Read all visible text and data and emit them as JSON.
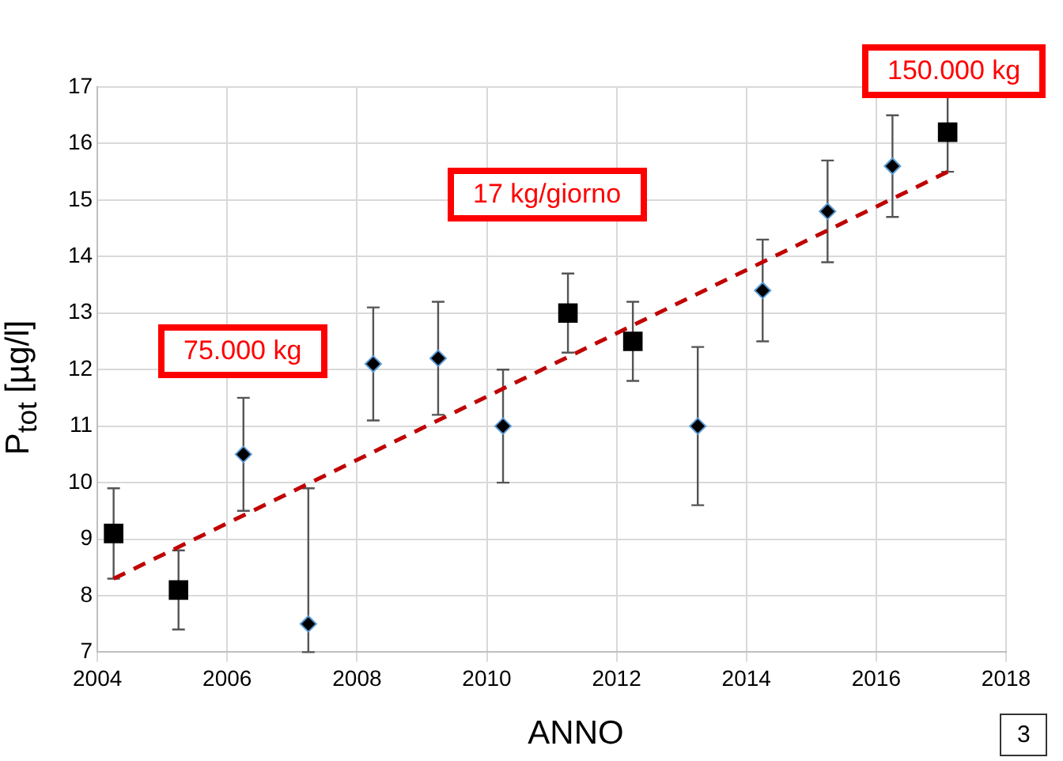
{
  "chart_data": {
    "type": "scatter",
    "xlabel": "ANNO",
    "ylabel": "P$_{tot}$ [µg/l]",
    "xlim": [
      2004,
      2018
    ],
    "xticks": [
      2004,
      2006,
      2008,
      2010,
      2012,
      2014,
      2016,
      2018
    ],
    "ylim": [
      7,
      17
    ],
    "yticks": [
      7,
      8,
      9,
      10,
      11,
      12,
      13,
      14,
      15,
      16,
      17
    ],
    "grid": true,
    "legend": false,
    "series": [
      {
        "type": "scatter",
        "marker": "square",
        "color": "#000000",
        "x": [
          2004.25,
          2005.25,
          2011.25,
          2012.25,
          2017.1
        ],
        "values": [
          9.1,
          8.1,
          13.0,
          12.5,
          16.2
        ],
        "errors": [
          [
            8.3,
            9.9
          ],
          [
            7.4,
            8.8
          ],
          [
            12.3,
            13.7
          ],
          [
            11.8,
            13.2
          ],
          [
            15.5,
            16.9
          ]
        ]
      },
      {
        "type": "scatter",
        "marker": "diamond",
        "color": "#000000",
        "x": [
          2006.25,
          2007.25,
          2008.25,
          2009.25,
          2010.25,
          2013.25,
          2014.25,
          2015.25,
          2016.25
        ],
        "values": [
          10.5,
          7.5,
          12.1,
          12.2,
          11.0,
          11.0,
          13.4,
          14.8,
          15.6
        ],
        "errors": [
          [
            9.5,
            11.5
          ],
          [
            7.0,
            9.9
          ],
          [
            11.1,
            13.1
          ],
          [
            11.2,
            13.2
          ],
          [
            10.0,
            12.0
          ],
          [
            9.6,
            12.4
          ],
          [
            12.5,
            14.3
          ],
          [
            13.9,
            15.7
          ],
          [
            14.7,
            16.5
          ]
        ]
      },
      {
        "type": "line",
        "marker": "none",
        "line_style": "dashed",
        "color": "#c00000",
        "x": [
          2004.25,
          2017.1
        ],
        "values": [
          8.3,
          15.5
        ]
      }
    ],
    "annotations": [
      "75.000 kg",
      "17 kg/giorno",
      "150.000 kg",
      "3"
    ]
  }
}
